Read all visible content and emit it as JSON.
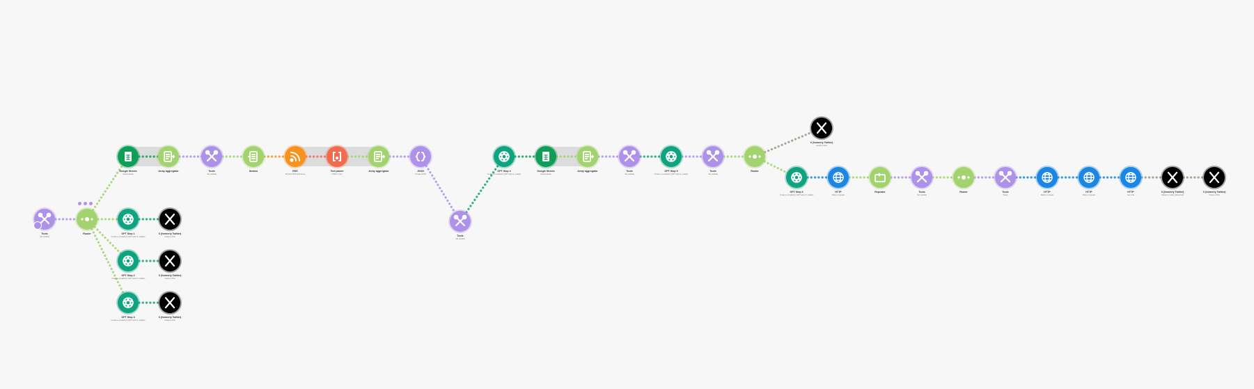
{
  "colors": {
    "background": "#f7f7f7",
    "tools": "#ae91e8",
    "router": "#a3d36f",
    "openai": "#10a37f",
    "x": "#000000",
    "sheets": "#0f9d58",
    "rss": "#f6921e",
    "textparser": "#f16c4f",
    "http": "#1b86e3"
  },
  "scenario": {
    "nodes": [
      {
        "label": "Tools",
        "sub": "Set variable",
        "type": "tools"
      },
      {
        "label": "Router",
        "sub": "",
        "type": "router"
      },
      {
        "label": "GPT Step 1",
        "sub": "Create a completion (GPT and o1 models)",
        "type": "openai"
      },
      {
        "label": "X (formerly Twitter)",
        "sub": "Create a Post",
        "type": "x"
      },
      {
        "label": "GPT Step 2",
        "sub": "Create a completion (GPT and o1 models)",
        "type": "openai"
      },
      {
        "label": "X (formerly Twitter)",
        "sub": "Create a Post",
        "type": "x"
      },
      {
        "label": "GPT Step 3",
        "sub": "Create a completion (GPT and o1 models)",
        "type": "openai"
      },
      {
        "label": "X (formerly Twitter)",
        "sub": "Create a Post",
        "type": "x"
      },
      {
        "label": "Google Sheets",
        "sub": "Search Rows",
        "type": "sheets"
      },
      {
        "label": "Array aggregator",
        "sub": "",
        "type": "aggregator"
      },
      {
        "label": "Tools",
        "sub": "Set variable",
        "type": "tools"
      },
      {
        "label": "Iterator",
        "sub": "",
        "type": "iterator"
      },
      {
        "label": "RSS",
        "sub": "Retrieve RSS feed items",
        "type": "rss"
      },
      {
        "label": "Text parser",
        "sub": "HTML to text",
        "type": "textparser"
      },
      {
        "label": "Array aggregator",
        "sub": "",
        "type": "aggregator"
      },
      {
        "label": "JSON",
        "sub": "Create JSON",
        "type": "json"
      },
      {
        "label": "Tools",
        "sub": "Set variable",
        "type": "tools"
      },
      {
        "label": "GPT Step 4",
        "sub": "Create a completion (GPT and o1 models)",
        "type": "openai"
      },
      {
        "label": "Google Sheets",
        "sub": "Search Rows",
        "type": "sheets"
      },
      {
        "label": "Array aggregator",
        "sub": "",
        "type": "aggregator"
      },
      {
        "label": "Tools",
        "sub": "Set variable",
        "type": "tools"
      },
      {
        "label": "GPT Step 5",
        "sub": "Create a completion (GPT and o1 models)",
        "type": "openai"
      },
      {
        "label": "Tools",
        "sub": "Set variable",
        "type": "tools"
      },
      {
        "label": "Router",
        "sub": "",
        "type": "router"
      },
      {
        "label": "X (formerly Twitter)",
        "sub": "Create a Post",
        "type": "x"
      },
      {
        "label": "GPT Step 6",
        "sub": "Create a completion (GPT and o1 models)",
        "type": "openai"
      },
      {
        "label": "HTTP",
        "sub": "Make a request",
        "type": "http"
      },
      {
        "label": "Repeater",
        "sub": "",
        "type": "repeater"
      },
      {
        "label": "Tools",
        "sub": "Set variable",
        "type": "tools"
      },
      {
        "label": "Router",
        "sub": "",
        "type": "router"
      },
      {
        "label": "Tools",
        "sub": "Sleep",
        "type": "tools"
      },
      {
        "label": "HTTP",
        "sub": "Make a request",
        "type": "http"
      },
      {
        "label": "HTTP",
        "sub": "Make a request",
        "type": "http"
      },
      {
        "label": "HTTP",
        "sub": "Get a file",
        "type": "http"
      },
      {
        "label": "X (formerly Twitter)",
        "sub": "Upload a media (advanced)",
        "type": "x"
      },
      {
        "label": "X (formerly Twitter)",
        "sub": "Create a Post",
        "type": "x"
      }
    ]
  }
}
